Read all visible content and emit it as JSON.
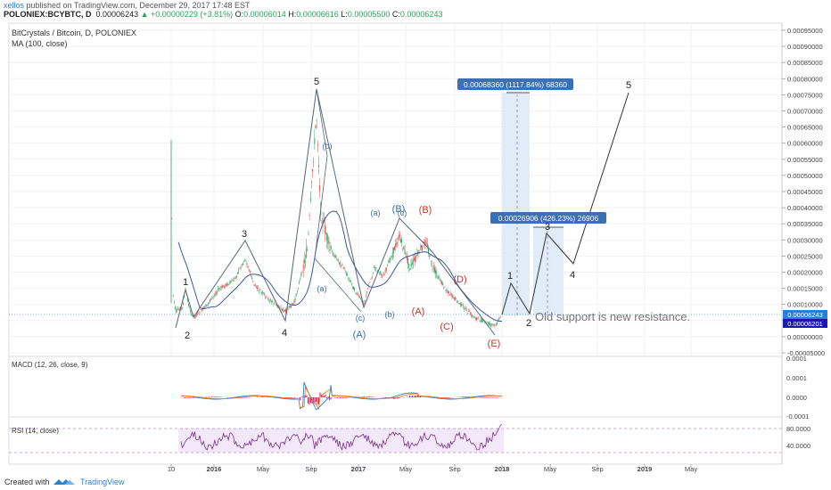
{
  "header": {
    "author": "xellos",
    "published": " published on TradingView.com, December 29, 2017 17:48 EST",
    "symbol": "POLONIEX:BCYBTC, D",
    "last": "0.00006243",
    "change": "+0.00000229 (+3.81%)",
    "o_label": "O:",
    "o": "0.00006014",
    "h_label": "H:",
    "h": "0.00006616",
    "l_label": "L:",
    "l": "0.00005500",
    "c_label": "C:",
    "c": "0.00006243"
  },
  "chart": {
    "title": "BitCrystals / Bitcoin, D, POLONIEX",
    "ma_label": "MA (100, close)",
    "y_ticks": [
      "0.00095000",
      "0.00090000",
      "0.00085000",
      "0.00080000",
      "0.00075000",
      "0.00070000",
      "0.00065000",
      "0.00060000",
      "0.00055000",
      "0.00050000",
      "0.00045000",
      "0.00040000",
      "0.00035000",
      "0.00030000",
      "0.00025000",
      "0.00020000",
      "0.00015000",
      "0.00010000",
      "0.00005000",
      "0.00000000",
      "-0.00005000"
    ],
    "price_badge": "0.00006243",
    "price_badge2": "0.00006201",
    "measure1": "0.00068360 (1117.84%) 68360",
    "measure2": "0.00026906 (426.23%) 26906",
    "annotation": "Old support is new resistance.",
    "x_ticks": [
      "10",
      "2016",
      "May",
      "Sep",
      "2017",
      "May",
      "Sep",
      "2018",
      "May",
      "Sep",
      "2019",
      "May"
    ],
    "wave_labels": {
      "w1": "1",
      "w2": "2",
      "w3": "3",
      "w4": "4",
      "w5": "5",
      "wa": "(a)",
      "wb": "(b)",
      "wa2": "(a)",
      "wb2": "(b)",
      "wc": "(c)",
      "wc2": "(c)",
      "wB": "(B)",
      "wA": "(A)",
      "rA": "(A)",
      "rB": "(B)",
      "rC": "(C)",
      "rD": "(D)",
      "rE": "(E)",
      "f1": "1",
      "f2": "2",
      "f3": "3",
      "f4": "4",
      "f5": "5"
    }
  },
  "macd": {
    "label": "MACD (12, 26, close, 9)",
    "ticks": [
      "0.0001",
      "0.0001",
      "0.0000",
      "-0.0001"
    ]
  },
  "rsi": {
    "label": "RSI (14, close)",
    "ticks": [
      "80.0000",
      "40.0000"
    ]
  },
  "footer": {
    "created": "Created with",
    "brand": "TradingView"
  },
  "colors": {
    "candle_up": "#26a65b",
    "candle_down": "#e04e4e",
    "ma": "#3b5998",
    "wave_line": "#556677",
    "blue_label": "#3a6ea5",
    "red_label": "#c0392b",
    "badge_blue": "#3d6fb4",
    "macd_hist": "#e91e63",
    "rsi_line": "#7b2d8b",
    "rsi_band": "#f3e8f8"
  }
}
